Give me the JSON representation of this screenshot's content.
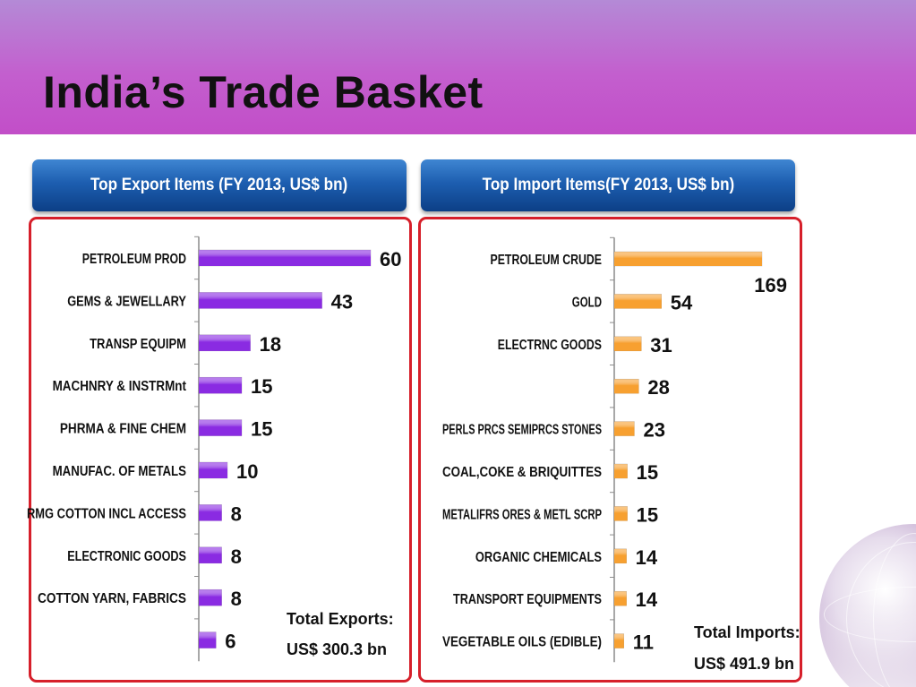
{
  "slide": {
    "title": "India’s Trade Basket"
  },
  "panels": {
    "exports_header": "Top Export Items (FY 2013, US$ bn)",
    "imports_header": "Top Import Items(FY 2013, US$ bn)"
  },
  "colors": {
    "export_bar": "#8a2be2",
    "import_bar": "#f7a030",
    "frame": "#d61f2a",
    "header_blue": "#1d5eb0"
  },
  "chart_data": [
    {
      "type": "bar",
      "orientation": "horizontal",
      "title": "Top Export Items (FY 2013, US$ bn)",
      "categories": [
        "PETROLEUM PROD",
        "GEMS & JEWELLARY",
        "TRANSP EQUIPM",
        "MACHNRY & INSTRMnt",
        "PHRMA & FINE CHEM",
        "MANUFAC. OF METALS",
        "RMG COTTON INCL ACCESS",
        "ELECTRONIC GOODS",
        "COTTON YARN, FABRICS",
        ""
      ],
      "values": [
        60,
        43,
        18,
        15,
        15,
        10,
        8,
        8,
        8,
        6
      ],
      "data_labels": [
        "60",
        "43",
        "18",
        "15",
        "15",
        "10",
        "8",
        "8",
        "8",
        "6"
      ],
      "xlim": [
        0,
        60
      ],
      "total_label": "Total Exports:",
      "total_value": "US$  300.3 bn",
      "grid": false
    },
    {
      "type": "bar",
      "orientation": "horizontal",
      "title": "Top Import Items(FY 2013, US$ bn)",
      "categories": [
        "PETROLEUM CRUDE",
        "GOLD",
        "ELECTRNC GOODS",
        "",
        "PERLS PRCS SEMIPRCS STONES",
        "COAL,COKE & BRIQUITTES",
        "METALIFRS ORES & METL SCRP",
        "ORGANIC CHEMICALS",
        "TRANSPORT EQUIPMENTS",
        "VEGETABLE OILS (EDIBLE)"
      ],
      "values": [
        169,
        54,
        31,
        28,
        23,
        15,
        15,
        14,
        14,
        11
      ],
      "data_labels": [
        "169",
        "54",
        "31",
        "28",
        "23",
        "15",
        "15",
        "14",
        "14",
        "11"
      ],
      "xlim": [
        0,
        169
      ],
      "total_label": "Total Imports:",
      "total_value": "US$  491.9 bn",
      "grid": false
    }
  ]
}
